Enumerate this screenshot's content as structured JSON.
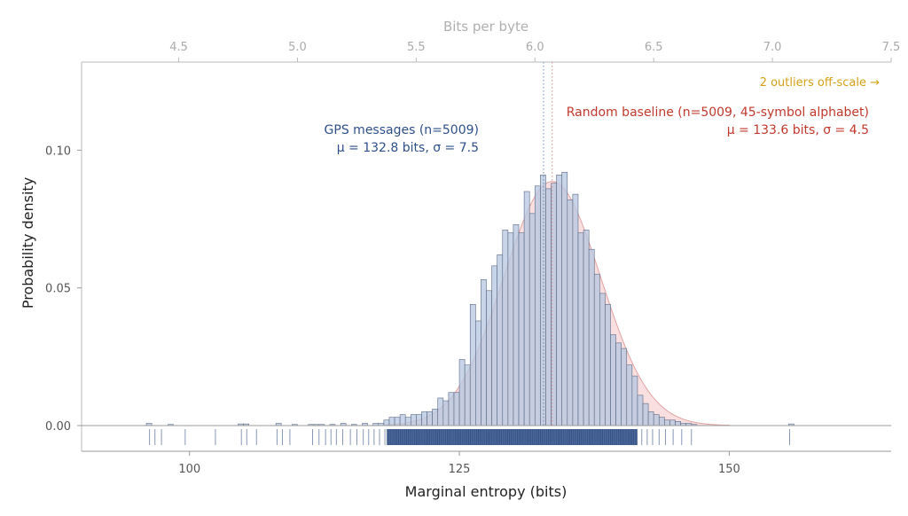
{
  "chart_data": {
    "type": "histogram",
    "xlabel": "Marginal entropy (bits)",
    "ylabel": "Probability density",
    "top_xlabel": "Bits per byte",
    "xlim": [
      90,
      165
    ],
    "ylim": [
      0,
      0.132
    ],
    "xticks": [
      100,
      125,
      150
    ],
    "xtick_labels": [
      "100",
      "125",
      "150"
    ],
    "yticks": [
      0.0,
      0.05,
      0.1
    ],
    "ytick_labels": [
      "0.00",
      "0.05",
      "0.10"
    ],
    "top_xticks": [
      4.5,
      5.0,
      5.5,
      6.0,
      6.5,
      7.0,
      7.5
    ],
    "top_xtick_labels": [
      "4.5",
      "5.0",
      "5.5",
      "6.0",
      "6.5",
      "7.0",
      "7.5"
    ],
    "bin_width": 0.5,
    "series": [
      {
        "name": "GPS messages",
        "color": "#b8c8e0",
        "edge": "#5a6a85",
        "n": 5009,
        "mean": 132.8,
        "std": 7.5,
        "bins": [
          [
            96.0,
            0.0008
          ],
          [
            98.0,
            0.0004
          ],
          [
            104.5,
            0.0006
          ],
          [
            105.0,
            0.0006
          ],
          [
            108.0,
            0.0008
          ],
          [
            109.5,
            0.0004
          ],
          [
            111.0,
            0.0004
          ],
          [
            111.5,
            0.0004
          ],
          [
            112.0,
            0.0004
          ],
          [
            113.0,
            0.0004
          ],
          [
            114.0,
            0.0008
          ],
          [
            115.0,
            0.0004
          ],
          [
            116.0,
            0.0008
          ],
          [
            117.0,
            0.0008
          ],
          [
            117.5,
            0.0008
          ],
          [
            118.0,
            0.002
          ],
          [
            118.5,
            0.003
          ],
          [
            119.0,
            0.003
          ],
          [
            119.5,
            0.004
          ],
          [
            120.0,
            0.003
          ],
          [
            120.5,
            0.004
          ],
          [
            121.0,
            0.004
          ],
          [
            121.5,
            0.005
          ],
          [
            122.0,
            0.005
          ],
          [
            122.5,
            0.006
          ],
          [
            123.0,
            0.01
          ],
          [
            123.5,
            0.009
          ],
          [
            124.0,
            0.012
          ],
          [
            124.5,
            0.012
          ],
          [
            125.0,
            0.024
          ],
          [
            125.5,
            0.022
          ],
          [
            126.0,
            0.044
          ],
          [
            126.5,
            0.038
          ],
          [
            127.0,
            0.053
          ],
          [
            127.5,
            0.049
          ],
          [
            128.0,
            0.058
          ],
          [
            128.5,
            0.062
          ],
          [
            129.0,
            0.071
          ],
          [
            129.5,
            0.07
          ],
          [
            130.0,
            0.073
          ],
          [
            130.5,
            0.07
          ],
          [
            131.0,
            0.085
          ],
          [
            131.5,
            0.077
          ],
          [
            132.0,
            0.087
          ],
          [
            132.5,
            0.091
          ],
          [
            133.0,
            0.086
          ],
          [
            133.5,
            0.088
          ],
          [
            134.0,
            0.091
          ],
          [
            134.5,
            0.092
          ],
          [
            135.0,
            0.082
          ],
          [
            135.5,
            0.084
          ],
          [
            136.0,
            0.07
          ],
          [
            136.5,
            0.071
          ],
          [
            137.0,
            0.064
          ],
          [
            137.5,
            0.055
          ],
          [
            138.0,
            0.048
          ],
          [
            138.5,
            0.044
          ],
          [
            139.0,
            0.033
          ],
          [
            139.5,
            0.03
          ],
          [
            140.0,
            0.028
          ],
          [
            140.5,
            0.022
          ],
          [
            141.0,
            0.018
          ],
          [
            141.5,
            0.011
          ],
          [
            142.0,
            0.008
          ],
          [
            142.5,
            0.005
          ],
          [
            143.0,
            0.004
          ],
          [
            143.5,
            0.003
          ],
          [
            144.0,
            0.002
          ],
          [
            144.5,
            0.002
          ],
          [
            145.0,
            0.0015
          ],
          [
            145.5,
            0.0008
          ],
          [
            146.0,
            0.0008
          ],
          [
            146.5,
            0.0004
          ],
          [
            155.5,
            0.0006
          ]
        ]
      },
      {
        "name": "Random baseline",
        "color": "#f4c4c4",
        "edge": "#c08080",
        "n": 5009,
        "mean": 133.6,
        "std": 4.5,
        "alphabet": "45-symbol alphabet"
      }
    ],
    "mean_lines": [
      {
        "series": "GPS messages",
        "x": 132.8,
        "color": "#6c8fb5"
      },
      {
        "series": "Random baseline",
        "x": 133.6,
        "color": "#d88b8b"
      }
    ],
    "rug": {
      "sparse": [
        96.3,
        96.8,
        97.4,
        99.6,
        102.4,
        104.8,
        105.3,
        106.2,
        108.1,
        108.6,
        109.3,
        111.4,
        112.0,
        112.6,
        113.1,
        113.6,
        114.2,
        114.9,
        115.5,
        116.1,
        116.6,
        117.1,
        117.6,
        118.1,
        141.9,
        142.4,
        142.9,
        143.5,
        144.1,
        144.8,
        145.6,
        146.5,
        155.6
      ],
      "dense_range": [
        118.3,
        141.5
      ]
    },
    "annotations": {
      "gps_label": "GPS messages (n=5009)",
      "gps_stats": "μ = 132.8 bits, σ = 7.5",
      "random_label": "Random baseline (n=5009, 45-symbol alphabet)",
      "random_stats": "μ = 133.6 bits, σ = 4.5",
      "outliers": "2 outliers off-scale →"
    },
    "colors": {
      "gps_text": "#2e4f8a",
      "random_text": "#c0392b",
      "outlier_text": "#d4a017",
      "rug": "#2e4f8a"
    }
  }
}
